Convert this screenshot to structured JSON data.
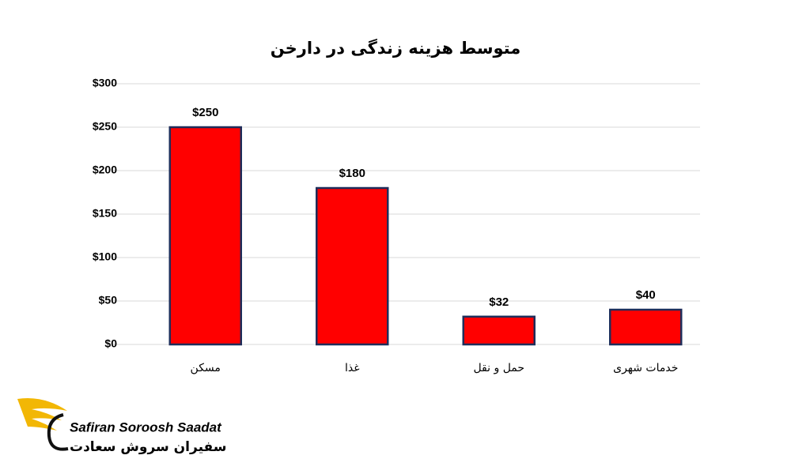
{
  "chart_data": {
    "type": "bar",
    "title": "متوسط هزینه زندگی در دارخن",
    "categories": [
      "مسکن",
      "غذا",
      "حمل و نقل",
      "خدمات شهری"
    ],
    "values": [
      250,
      180,
      32,
      40
    ],
    "value_labels": [
      "$250",
      "$180",
      "$32",
      "$40"
    ],
    "color": "#ff0000",
    "edge_color": "#1f2d5a",
    "ylim": [
      0,
      300
    ],
    "yticks": [
      {
        "value": 0,
        "label": "$0"
      },
      {
        "value": 50,
        "label": "$50"
      },
      {
        "value": 100,
        "label": "$100"
      },
      {
        "value": 150,
        "label": "$150"
      },
      {
        "value": 200,
        "label": "$200"
      },
      {
        "value": 250,
        "label": "$250"
      },
      {
        "value": 300,
        "label": "$300"
      }
    ],
    "grid": true
  },
  "logo": {
    "latin": "Safiran Soroosh Saadat",
    "persian": "سفیران سروش سعادت"
  }
}
